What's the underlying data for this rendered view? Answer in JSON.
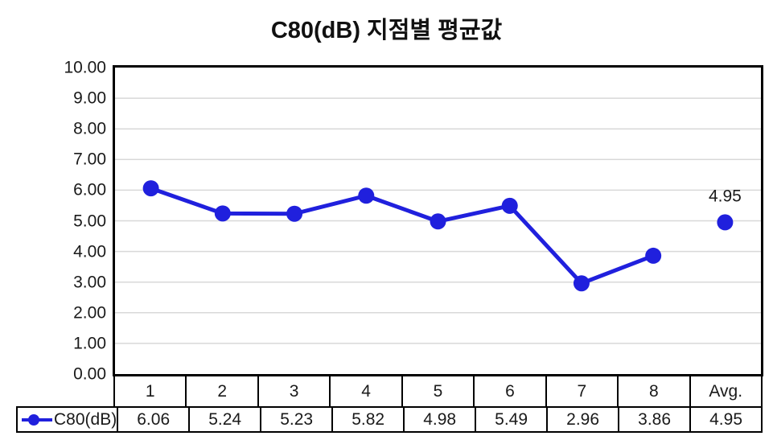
{
  "title": "C80(dB) 지점별 평균값",
  "chart_data": {
    "type": "line",
    "title": "C80(dB) 지점별 평균값",
    "categories": [
      "1",
      "2",
      "3",
      "4",
      "5",
      "6",
      "7",
      "8",
      "Avg."
    ],
    "series": [
      {
        "name": "C80(dB)",
        "values": [
          6.06,
          5.24,
          5.23,
          5.82,
          4.98,
          5.49,
          2.96,
          3.86,
          4.95
        ]
      }
    ],
    "polyline_point_count": 8,
    "data_label": {
      "index": 8,
      "text": "4.95"
    },
    "ylim": [
      0,
      10
    ],
    "ytick_step": 1,
    "ytick_labels": [
      "10.00",
      "9.00",
      "8.00",
      "7.00",
      "6.00",
      "5.00",
      "4.00",
      "3.00",
      "2.00",
      "1.00",
      "0.00"
    ],
    "grid": "horizontal",
    "legend_position": "table-left",
    "colors": {
      "line": "#2020dd",
      "grid": "#d8d8d8",
      "text": "#1a1a1a",
      "border": "#000000"
    }
  },
  "table": {
    "legend_label": "C80(dB)",
    "categories": [
      "1",
      "2",
      "3",
      "4",
      "5",
      "6",
      "7",
      "8",
      "Avg."
    ],
    "values": [
      "6.06",
      "5.24",
      "5.23",
      "5.82",
      "4.98",
      "5.49",
      "2.96",
      "3.86",
      "4.95"
    ]
  }
}
